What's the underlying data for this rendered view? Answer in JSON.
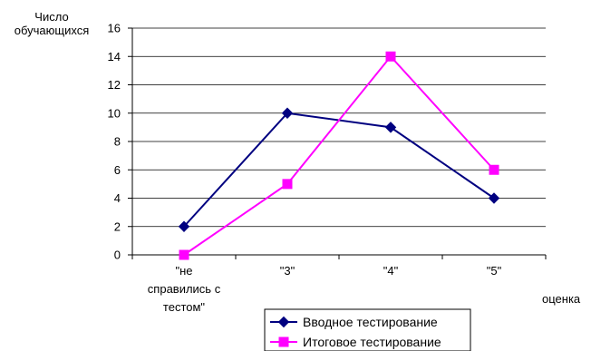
{
  "chart_data": {
    "type": "line",
    "ylabel_lines": [
      "Число",
      "обучающихся"
    ],
    "xlabel": "оценка",
    "ylim": [
      0,
      16
    ],
    "ytick_step": 2,
    "grid": true,
    "legend_position": "bottom-center",
    "categories": [
      {
        "lines": [
          "\"не",
          "справились с",
          "тестом\""
        ]
      },
      {
        "lines": [
          "\"3\""
        ]
      },
      {
        "lines": [
          "\"4\""
        ]
      },
      {
        "lines": [
          "\"5\""
        ]
      }
    ],
    "series": [
      {
        "name": "Вводное тестирование",
        "color": "#000080",
        "marker": "diamond",
        "values": [
          2,
          10,
          9,
          4
        ]
      },
      {
        "name": "Итоговое тестирование",
        "color": "#ff00ff",
        "marker": "square",
        "values": [
          0,
          5,
          14,
          6
        ]
      }
    ]
  }
}
